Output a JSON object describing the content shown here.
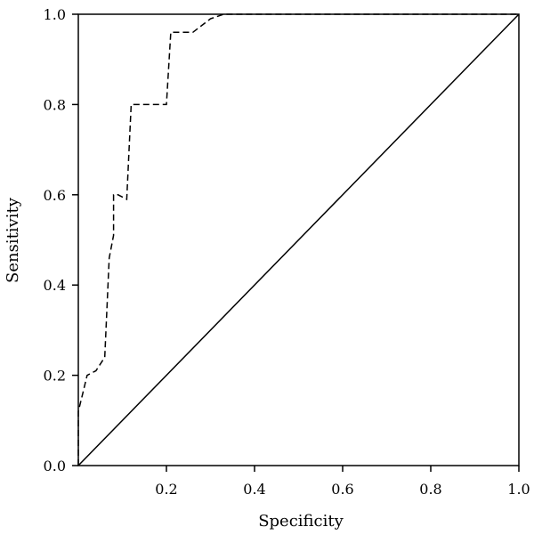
{
  "chart_data": {
    "type": "line",
    "title": "",
    "xlabel": "Specificity",
    "ylabel": "Sensitivity",
    "xlim": [
      0,
      1
    ],
    "ylim": [
      0,
      1
    ],
    "x_ticks": [
      "0.2",
      "0.4",
      "0.6",
      "0.8",
      "1.0"
    ],
    "y_ticks": [
      "0.0",
      "0.2",
      "0.4",
      "0.6",
      "0.8",
      "1.0"
    ],
    "grid": false,
    "legend": "none",
    "series": [
      {
        "style": "dashed",
        "color": "#000000",
        "points": [
          [
            0.0,
            0.0
          ],
          [
            0.0,
            0.12
          ],
          [
            0.01,
            0.16
          ],
          [
            0.02,
            0.2
          ],
          [
            0.04,
            0.21
          ],
          [
            0.06,
            0.24
          ],
          [
            0.07,
            0.46
          ],
          [
            0.08,
            0.51
          ],
          [
            0.08,
            0.6
          ],
          [
            0.09,
            0.6
          ],
          [
            0.11,
            0.59
          ],
          [
            0.12,
            0.8
          ],
          [
            0.2,
            0.8
          ],
          [
            0.21,
            0.96
          ],
          [
            0.26,
            0.96
          ],
          [
            0.3,
            0.99
          ],
          [
            0.33,
            1.0
          ],
          [
            1.0,
            1.0
          ]
        ]
      },
      {
        "style": "solid",
        "color": "#000000",
        "points": [
          [
            0,
            0
          ],
          [
            1,
            1
          ]
        ]
      }
    ]
  }
}
